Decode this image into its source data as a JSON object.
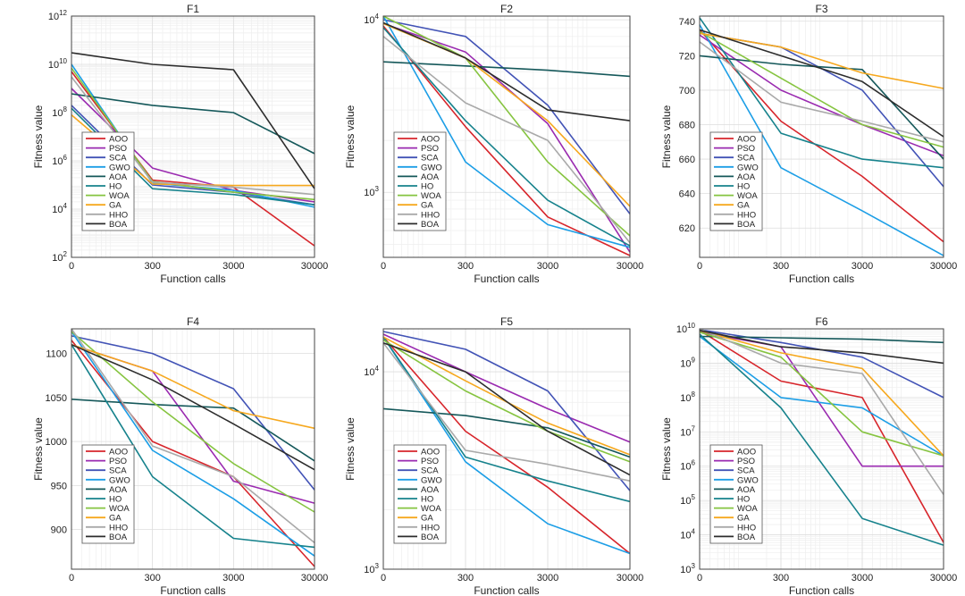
{
  "legend_items": [
    "AOO",
    "PSO",
    "SCA",
    "GWO",
    "AOA",
    "HO",
    "WOA",
    "GA",
    "HHO",
    "BOA"
  ],
  "colors": {
    "AOO": "#d7252b",
    "PSO": "#9a2ab0",
    "SCA": "#4253b6",
    "GWO": "#1c9ee6",
    "AOA": "#15585a",
    "HO": "#16828c",
    "WOA": "#86c440",
    "GA": "#f6a81e",
    "HHO": "#a9a9a9",
    "BOA": "#2d2d2d"
  },
  "chart_data": [
    {
      "type": "line",
      "title": "F1",
      "xlabel": "Function calls",
      "ylabel": "Fitness value",
      "yscale": "log",
      "ylim": [
        100,
        1000000000000
      ],
      "x": [
        30,
        300,
        3000,
        30000
      ],
      "xtick_labels": [
        "0",
        "300",
        "3000",
        "30000"
      ],
      "ytick_labels": [
        "10^2",
        "10^4",
        "10^6",
        "10^8",
        "10^10",
        "10^12"
      ],
      "yticks": [
        100,
        10000,
        1000000,
        100000000,
        10000000000,
        1000000000000
      ],
      "series": [
        {
          "name": "AOO",
          "values": [
            5000000000,
            160000,
            80000,
            300
          ]
        },
        {
          "name": "PSO",
          "values": [
            1000000000,
            500000,
            60000,
            20000
          ]
        },
        {
          "name": "SCA",
          "values": [
            200000000,
            100000,
            50000,
            15000
          ]
        },
        {
          "name": "GWO",
          "values": [
            10000000000,
            120000,
            60000,
            12000
          ]
        },
        {
          "name": "AOA",
          "values": [
            600000000,
            200000000,
            100000000,
            2000000
          ]
        },
        {
          "name": "HO",
          "values": [
            150000000,
            70000,
            40000,
            15000
          ]
        },
        {
          "name": "WOA",
          "values": [
            7000000000,
            140000,
            50000,
            25000
          ]
        },
        {
          "name": "GA",
          "values": [
            80000000,
            110000,
            95000,
            95000
          ]
        },
        {
          "name": "HHO",
          "values": [
            3000000000,
            130000,
            80000,
            40000
          ]
        },
        {
          "name": "BOA",
          "values": [
            30000000000,
            10000000000,
            6000000000,
            70000
          ]
        }
      ]
    },
    {
      "type": "line",
      "title": "F2",
      "xlabel": "Function calls",
      "ylabel": "Fitness value",
      "yscale": "log",
      "ylim": [
        420,
        10500
      ],
      "x": [
        30,
        300,
        3000,
        30000
      ],
      "xtick_labels": [
        "0",
        "300",
        "3000",
        "30000"
      ],
      "ytick_labels": [
        "10^3",
        "10^4"
      ],
      "yticks": [
        1000,
        10000
      ],
      "series": [
        {
          "name": "AOO",
          "values": [
            9200,
            2400,
            720,
            430
          ]
        },
        {
          "name": "PSO",
          "values": [
            9500,
            6500,
            2500,
            450
          ]
        },
        {
          "name": "SCA",
          "values": [
            10000,
            8000,
            3200,
            750
          ]
        },
        {
          "name": "GWO",
          "values": [
            11000,
            1500,
            650,
            480
          ]
        },
        {
          "name": "AOA",
          "values": [
            5700,
            5400,
            5100,
            4700
          ]
        },
        {
          "name": "HO",
          "values": [
            9000,
            2600,
            900,
            490
          ]
        },
        {
          "name": "WOA",
          "values": [
            11000,
            6000,
            1500,
            560
          ]
        },
        {
          "name": "GA",
          "values": [
            9500,
            6000,
            2600,
            830
          ]
        },
        {
          "name": "HHO",
          "values": [
            8000,
            3300,
            2000,
            510
          ]
        },
        {
          "name": "BOA",
          "values": [
            9600,
            6000,
            3000,
            2600
          ]
        }
      ]
    },
    {
      "type": "line",
      "title": "F3",
      "xlabel": "Function calls",
      "ylabel": "Fitness value",
      "yscale": "linear",
      "ylim": [
        603,
        743
      ],
      "x": [
        30,
        300,
        3000,
        30000
      ],
      "xtick_labels": [
        "0",
        "300",
        "3000",
        "30000"
      ],
      "ytick_labels": [
        "620",
        "640",
        "660",
        "680",
        "700",
        "720",
        "740"
      ],
      "yticks": [
        620,
        640,
        660,
        680,
        700,
        720,
        740
      ],
      "series": [
        {
          "name": "AOO",
          "values": [
            735,
            682,
            650,
            612
          ]
        },
        {
          "name": "PSO",
          "values": [
            732,
            700,
            680,
            662
          ]
        },
        {
          "name": "SCA",
          "values": [
            733,
            725,
            700,
            644
          ]
        },
        {
          "name": "GWO",
          "values": [
            738,
            655,
            630,
            604
          ]
        },
        {
          "name": "AOA",
          "values": [
            720,
            715,
            712,
            660
          ]
        },
        {
          "name": "HO",
          "values": [
            742,
            675,
            660,
            655
          ]
        },
        {
          "name": "WOA",
          "values": [
            734,
            707,
            680,
            667
          ]
        },
        {
          "name": "GA",
          "values": [
            733,
            725,
            710,
            701
          ]
        },
        {
          "name": "HHO",
          "values": [
            728,
            693,
            682,
            670
          ]
        },
        {
          "name": "BOA",
          "values": [
            735,
            720,
            705,
            673
          ]
        }
      ]
    },
    {
      "type": "line",
      "title": "F4",
      "xlabel": "Function calls",
      "ylabel": "Fitness value",
      "yscale": "linear",
      "ylim": [
        855,
        1128
      ],
      "x": [
        30,
        300,
        3000,
        30000
      ],
      "xtick_labels": [
        "0",
        "300",
        "3000",
        "30000"
      ],
      "ytick_labels": [
        "900",
        "950",
        "1000",
        "1050",
        "1100"
      ],
      "yticks": [
        900,
        950,
        1000,
        1050,
        1100
      ],
      "series": [
        {
          "name": "AOO",
          "values": [
            1115,
            1000,
            960,
            858
          ]
        },
        {
          "name": "PSO",
          "values": [
            1110,
            1080,
            955,
            930
          ]
        },
        {
          "name": "SCA",
          "values": [
            1120,
            1100,
            1060,
            945
          ]
        },
        {
          "name": "GWO",
          "values": [
            1125,
            990,
            935,
            870
          ]
        },
        {
          "name": "AOA",
          "values": [
            1048,
            1042,
            1038,
            978
          ]
        },
        {
          "name": "HO",
          "values": [
            1110,
            960,
            890,
            880
          ]
        },
        {
          "name": "WOA",
          "values": [
            1125,
            1045,
            975,
            920
          ]
        },
        {
          "name": "GA",
          "values": [
            1110,
            1080,
            1035,
            1015
          ]
        },
        {
          "name": "HHO",
          "values": [
            1128,
            995,
            960,
            885
          ]
        },
        {
          "name": "BOA",
          "values": [
            1110,
            1070,
            1020,
            968
          ]
        }
      ]
    },
    {
      "type": "line",
      "title": "F5",
      "xlabel": "Function calls",
      "ylabel": "Fitness value",
      "yscale": "log",
      "ylim": [
        1000,
        16500
      ],
      "x": [
        30,
        300,
        3000,
        30000
      ],
      "xtick_labels": [
        "0",
        "300",
        "3000",
        "30000"
      ],
      "ytick_labels": [
        "10^3",
        "10^4"
      ],
      "yticks": [
        1000,
        10000
      ],
      "series": [
        {
          "name": "AOO",
          "values": [
            15000,
            5000,
            2600,
            1200
          ]
        },
        {
          "name": "PSO",
          "values": [
            15500,
            10000,
            6500,
            4400
          ]
        },
        {
          "name": "SCA",
          "values": [
            16000,
            13000,
            8000,
            2500
          ]
        },
        {
          "name": "GWO",
          "values": [
            15000,
            3500,
            1700,
            1200
          ]
        },
        {
          "name": "AOA",
          "values": [
            6500,
            6000,
            5200,
            3700
          ]
        },
        {
          "name": "HO",
          "values": [
            15000,
            3700,
            2800,
            2200
          ]
        },
        {
          "name": "WOA",
          "values": [
            14500,
            8000,
            5000,
            3500
          ]
        },
        {
          "name": "GA",
          "values": [
            15000,
            9000,
            5500,
            3800
          ]
        },
        {
          "name": "HHO",
          "values": [
            14000,
            4000,
            3400,
            2800
          ]
        },
        {
          "name": "BOA",
          "values": [
            14000,
            10000,
            5000,
            3000
          ]
        }
      ]
    },
    {
      "type": "line",
      "title": "F6",
      "xlabel": "Function calls",
      "ylabel": "Fitness value",
      "yscale": "log",
      "ylim": [
        1000,
        10000000000
      ],
      "x": [
        30,
        300,
        3000,
        30000
      ],
      "xtick_labels": [
        "0",
        "300",
        "3000",
        "30000"
      ],
      "ytick_labels": [
        "10^3",
        "10^4",
        "10^5",
        "10^6",
        "10^7",
        "10^8",
        "10^9",
        "10^10"
      ],
      "yticks": [
        1000,
        10000,
        100000,
        1000000,
        10000000,
        100000000,
        1000000000,
        10000000000
      ],
      "series": [
        {
          "name": "AOO",
          "values": [
            9000000000,
            300000000,
            100000000,
            6000
          ]
        },
        {
          "name": "PSO",
          "values": [
            8000000000,
            3000000000,
            1000000,
            1000000
          ]
        },
        {
          "name": "SCA",
          "values": [
            9500000000,
            4000000000,
            1500000000,
            100000000
          ]
        },
        {
          "name": "GWO",
          "values": [
            6000000000,
            100000000,
            50000000,
            2000000
          ]
        },
        {
          "name": "AOA",
          "values": [
            6000000000,
            5500000000,
            5000000000,
            4000000000
          ]
        },
        {
          "name": "HO",
          "values": [
            7000000000,
            50000000,
            30000,
            5000
          ]
        },
        {
          "name": "WOA",
          "values": [
            8000000000,
            1500000000,
            10000000,
            2000000
          ]
        },
        {
          "name": "GA",
          "values": [
            9000000000,
            2000000000,
            700000000,
            2000000
          ]
        },
        {
          "name": "HHO",
          "values": [
            10000000000,
            1000000000,
            500000000,
            150000
          ]
        },
        {
          "name": "BOA",
          "values": [
            9000000000,
            3000000000,
            2000000000,
            1000000000
          ]
        }
      ]
    }
  ]
}
